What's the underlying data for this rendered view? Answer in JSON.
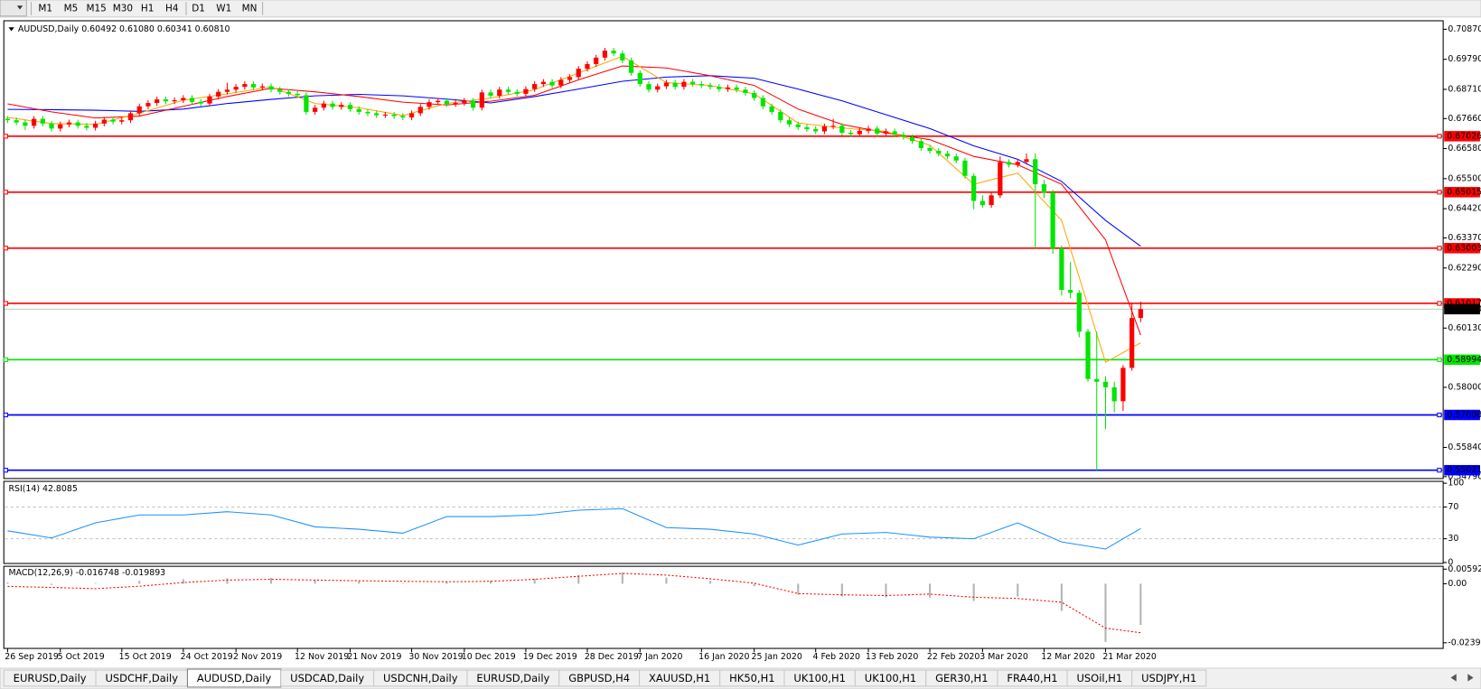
{
  "toolbar": {
    "timeframes": [
      "M1",
      "M5",
      "M15",
      "M30",
      "H1",
      "H4",
      "D1",
      "W1",
      "MN"
    ]
  },
  "chart_data": {
    "type": "candlestick",
    "title": "AUDUSD,Daily  0.60492 0.61080 0.60341 0.60810",
    "categories": [
      "26 Sep 2019",
      null,
      null,
      null,
      null,
      null,
      "5 Oct 2019",
      null,
      null,
      null,
      null,
      null,
      null,
      "15 Oct 2019",
      null,
      null,
      null,
      null,
      null,
      null,
      "24 Oct 2019",
      null,
      null,
      null,
      null,
      null,
      "2 Nov 2019",
      null,
      null,
      null,
      null,
      null,
      null,
      "12 Nov 2019",
      null,
      null,
      null,
      null,
      null,
      "21 Nov 2019",
      null,
      null,
      null,
      null,
      null,
      null,
      "30 Nov 2019",
      null,
      null,
      null,
      null,
      null,
      "10 Dec 2019",
      null,
      null,
      null,
      null,
      null,
      null,
      "19 Dec 2019",
      null,
      null,
      null,
      null,
      null,
      null,
      "28 Dec 2019",
      null,
      null,
      null,
      null,
      null,
      "7 Jan 2020",
      null,
      null,
      null,
      null,
      null,
      null,
      "16 Jan 2020",
      null,
      null,
      null,
      null,
      null,
      "25 Jan 2020",
      null,
      null,
      null,
      null,
      null,
      null,
      "4 Feb 2020",
      null,
      null,
      null,
      null,
      null,
      "13 Feb 2020",
      null,
      null,
      null,
      null,
      null,
      null,
      "22 Feb 2020",
      null,
      null,
      null,
      null,
      null,
      "3 Mar 2020",
      null,
      null,
      null,
      null,
      null,
      null,
      "12 Mar 2020",
      null,
      null,
      null,
      null,
      null,
      null,
      "21 Mar 2020",
      null,
      null,
      null,
      null
    ],
    "open": [
      0.6765,
      0.676,
      0.6752,
      0.674,
      0.6765,
      0.6748,
      0.673,
      0.6745,
      0.6752,
      0.674,
      0.6733,
      0.6748,
      0.6762,
      0.6755,
      0.676,
      0.6785,
      0.681,
      0.6822,
      0.6835,
      0.6828,
      0.6832,
      0.684,
      0.6826,
      0.682,
      0.6845,
      0.6862,
      0.687,
      0.688,
      0.689,
      0.6878,
      0.6882,
      0.687,
      0.6862,
      0.6855,
      0.685,
      0.679,
      0.6805,
      0.682,
      0.6808,
      0.6815,
      0.68,
      0.679,
      0.6785,
      0.6778,
      0.678,
      0.6775,
      0.677,
      0.6785,
      0.6808,
      0.6825,
      0.683,
      0.6818,
      0.6822,
      0.683,
      0.6805,
      0.686,
      0.6848,
      0.687,
      0.6862,
      0.6855,
      0.6872,
      0.689,
      0.6898,
      0.6885,
      0.6905,
      0.6915,
      0.6945,
      0.6962,
      0.6985,
      0.701,
      0.7,
      0.6975,
      0.693,
      0.689,
      0.687,
      0.6882,
      0.6895,
      0.688,
      0.6898,
      0.689,
      0.6885,
      0.688,
      0.6872,
      0.6878,
      0.687,
      0.6858,
      0.684,
      0.681,
      0.679,
      0.676,
      0.6745,
      0.6735,
      0.6728,
      0.672,
      0.6738,
      0.674,
      0.6715,
      0.671,
      0.6722,
      0.673,
      0.6712,
      0.672,
      0.6708,
      0.67,
      0.6685,
      0.666,
      0.665,
      0.664,
      0.663,
      0.6615,
      0.656,
      0.647,
      0.6455,
      0.649,
      0.661,
      0.66,
      0.661,
      0.662,
      0.653,
      0.65,
      0.63,
      0.615,
      0.614,
      0.6,
      0.583,
      0.582,
      0.58,
      0.575,
      0.587,
      0.60492
    ],
    "high": [
      0.6775,
      0.677,
      0.6762,
      0.6775,
      0.6775,
      0.6758,
      0.6755,
      0.6762,
      0.6762,
      0.675,
      0.6758,
      0.6772,
      0.6772,
      0.677,
      0.6795,
      0.682,
      0.6832,
      0.6845,
      0.6845,
      0.6842,
      0.685,
      0.685,
      0.6836,
      0.6855,
      0.6872,
      0.6895,
      0.689,
      0.69,
      0.69,
      0.6892,
      0.6892,
      0.688,
      0.6872,
      0.6865,
      0.686,
      0.6815,
      0.683,
      0.683,
      0.6825,
      0.6825,
      0.681,
      0.68,
      0.6795,
      0.679,
      0.679,
      0.6785,
      0.6795,
      0.6818,
      0.6835,
      0.684,
      0.684,
      0.6832,
      0.684,
      0.684,
      0.687,
      0.687,
      0.688,
      0.688,
      0.6872,
      0.6882,
      0.69,
      0.6908,
      0.6908,
      0.6915,
      0.6925,
      0.6955,
      0.6972,
      0.6995,
      0.702,
      0.702,
      0.701,
      0.6985,
      0.694,
      0.69,
      0.6892,
      0.6905,
      0.6905,
      0.6908,
      0.6908,
      0.69,
      0.6895,
      0.689,
      0.6888,
      0.6888,
      0.688,
      0.6868,
      0.685,
      0.682,
      0.68,
      0.677,
      0.6755,
      0.6745,
      0.6738,
      0.6748,
      0.6765,
      0.675,
      0.6725,
      0.6732,
      0.674,
      0.674,
      0.673,
      0.673,
      0.6718,
      0.671,
      0.6695,
      0.667,
      0.666,
      0.665,
      0.664,
      0.6625,
      0.657,
      0.649,
      0.65,
      0.663,
      0.662,
      0.662,
      0.664,
      0.664,
      0.6545,
      0.651,
      0.631,
      0.625,
      0.615,
      0.601,
      0.6,
      0.584,
      0.582,
      0.588,
      0.61,
      0.6108
    ],
    "low": [
      0.675,
      0.6742,
      0.6725,
      0.673,
      0.6738,
      0.672,
      0.672,
      0.6735,
      0.673,
      0.6723,
      0.6723,
      0.6738,
      0.6745,
      0.6745,
      0.675,
      0.6775,
      0.68,
      0.6812,
      0.6818,
      0.6818,
      0.6822,
      0.6816,
      0.681,
      0.681,
      0.6835,
      0.6852,
      0.686,
      0.687,
      0.6868,
      0.6868,
      0.686,
      0.6852,
      0.6845,
      0.684,
      0.678,
      0.678,
      0.6795,
      0.6798,
      0.6798,
      0.679,
      0.678,
      0.6775,
      0.6768,
      0.6768,
      0.6765,
      0.676,
      0.676,
      0.6775,
      0.6798,
      0.6815,
      0.6808,
      0.6808,
      0.6812,
      0.6795,
      0.6795,
      0.6838,
      0.6838,
      0.6852,
      0.6845,
      0.6845,
      0.6862,
      0.688,
      0.6875,
      0.6875,
      0.6895,
      0.6905,
      0.6935,
      0.6952,
      0.6975,
      0.699,
      0.6965,
      0.692,
      0.688,
      0.686,
      0.686,
      0.6872,
      0.687,
      0.687,
      0.688,
      0.6875,
      0.687,
      0.6862,
      0.6862,
      0.686,
      0.6848,
      0.683,
      0.68,
      0.678,
      0.675,
      0.6735,
      0.6725,
      0.6718,
      0.671,
      0.671,
      0.6728,
      0.6705,
      0.67,
      0.67,
      0.6712,
      0.6702,
      0.6702,
      0.6698,
      0.669,
      0.6675,
      0.665,
      0.664,
      0.663,
      0.662,
      0.6605,
      0.655,
      0.644,
      0.6445,
      0.6445,
      0.648,
      0.659,
      0.659,
      0.66,
      0.63,
      0.648,
      0.628,
      0.613,
      0.612,
      0.598,
      0.582,
      0.5502,
      0.565,
      0.571,
      0.5715,
      0.586,
      0.6034
    ],
    "close": [
      0.676,
      0.6752,
      0.674,
      0.6765,
      0.6748,
      0.673,
      0.6745,
      0.6752,
      0.674,
      0.6733,
      0.6748,
      0.6762,
      0.6755,
      0.676,
      0.6785,
      0.681,
      0.6822,
      0.6835,
      0.6828,
      0.6832,
      0.684,
      0.6826,
      0.682,
      0.6845,
      0.6862,
      0.687,
      0.688,
      0.689,
      0.6878,
      0.6882,
      0.687,
      0.6862,
      0.6855,
      0.685,
      0.679,
      0.6805,
      0.682,
      0.6808,
      0.6815,
      0.68,
      0.679,
      0.6785,
      0.6778,
      0.678,
      0.6775,
      0.677,
      0.6785,
      0.6808,
      0.6825,
      0.683,
      0.6818,
      0.6822,
      0.683,
      0.6805,
      0.686,
      0.6848,
      0.687,
      0.6862,
      0.6855,
      0.6872,
      0.689,
      0.6898,
      0.6885,
      0.6905,
      0.6915,
      0.6945,
      0.6962,
      0.6985,
      0.701,
      0.7,
      0.6975,
      0.693,
      0.689,
      0.687,
      0.6882,
      0.6895,
      0.688,
      0.6898,
      0.689,
      0.6885,
      0.688,
      0.6872,
      0.6878,
      0.687,
      0.6858,
      0.684,
      0.681,
      0.679,
      0.676,
      0.6745,
      0.6735,
      0.6728,
      0.672,
      0.6738,
      0.674,
      0.6715,
      0.671,
      0.6722,
      0.673,
      0.6712,
      0.672,
      0.6708,
      0.67,
      0.6685,
      0.666,
      0.665,
      0.664,
      0.663,
      0.6615,
      0.656,
      0.647,
      0.6455,
      0.649,
      0.661,
      0.66,
      0.661,
      0.662,
      0.653,
      0.65,
      0.63,
      0.615,
      0.614,
      0.6,
      0.583,
      0.582,
      0.58,
      0.575,
      0.587,
      0.6049,
      0.6081
    ],
    "up_color": "#ff0000",
    "down_color": "#00e600",
    "ylim": [
      0.5479,
      0.7087
    ],
    "yticks": [
      {
        "value": 0.7087,
        "label": "0.70870"
      },
      {
        "value": 0.6979,
        "label": "0.69790"
      },
      {
        "value": 0.6871,
        "label": "0.68710"
      },
      {
        "value": 0.6766,
        "label": "0.67660"
      },
      {
        "value": 0.6658,
        "label": "0.66580"
      },
      {
        "value": 0.655,
        "label": "0.65500"
      },
      {
        "value": 0.6442,
        "label": "0.64420"
      },
      {
        "value": 0.6337,
        "label": "0.63370"
      },
      {
        "value": 0.6229,
        "label": "0.62290"
      },
      {
        "value": 0.6013,
        "label": "0.60130"
      },
      {
        "value": 0.58,
        "label": "0.58000"
      },
      {
        "value": 0.5584,
        "label": "0.55840"
      },
      {
        "value": 0.5479,
        "label": "0.54790"
      }
    ],
    "levels": [
      {
        "value": 0.67026,
        "label": "0.67026",
        "color": "#ff0000"
      },
      {
        "value": 0.65015,
        "label": "0.65015",
        "color": "#ff0000"
      },
      {
        "value": 0.63003,
        "label": "0.63003",
        "color": "#ff0000"
      },
      {
        "value": 0.61017,
        "label": "0.61017",
        "color": "#ff0000"
      },
      {
        "value": 0.58994,
        "label": "0.58994",
        "color": "#00e600"
      },
      {
        "value": 0.57008,
        "label": "0.57008",
        "color": "#0000ff"
      },
      {
        "value": 0.55021,
        "label": "0.55021",
        "color": "#0000ff"
      }
    ],
    "current_price": {
      "value": 0.6081,
      "label": "0.60810"
    },
    "sample_x": [
      0,
      5,
      10,
      15,
      20,
      25,
      30,
      35,
      40,
      45,
      50,
      55,
      60,
      65,
      70,
      75,
      80,
      85,
      90,
      95,
      100,
      105,
      110,
      115,
      120,
      125,
      129
    ],
    "overlays": [
      {
        "color": "#0000ff",
        "values": [
          0.6799,
          0.6798,
          0.6796,
          0.6792,
          0.68,
          0.682,
          0.6835,
          0.6848,
          0.6853,
          0.6848,
          0.6836,
          0.6822,
          0.6845,
          0.6872,
          0.69,
          0.6915,
          0.692,
          0.6911,
          0.6872,
          0.683,
          0.678,
          0.673,
          0.6668,
          0.662,
          0.654,
          0.64,
          0.6307
        ]
      },
      {
        "color": "#ff0000",
        "values": [
          0.6819,
          0.679,
          0.6768,
          0.6775,
          0.681,
          0.6845,
          0.6875,
          0.6862,
          0.6845,
          0.6825,
          0.6815,
          0.6828,
          0.685,
          0.6905,
          0.6955,
          0.6948,
          0.692,
          0.6885,
          0.68,
          0.6745,
          0.6715,
          0.669,
          0.663,
          0.66,
          0.653,
          0.633,
          0.5988
        ]
      },
      {
        "color": "#ffa500",
        "values": [
          0.677,
          0.6748,
          0.6745,
          0.6785,
          0.6832,
          0.6855,
          0.688,
          0.682,
          0.6805,
          0.6777,
          0.682,
          0.684,
          0.687,
          0.693,
          0.699,
          0.6895,
          0.6885,
          0.6855,
          0.675,
          0.6732,
          0.672,
          0.667,
          0.653,
          0.657,
          0.64,
          0.589,
          0.596
        ]
      }
    ],
    "rsi": {
      "title": "RSI(14) 42.8085",
      "ylim": [
        0,
        100
      ],
      "yticks": [
        100,
        70,
        30,
        0
      ],
      "levels": [
        70,
        30
      ],
      "color": "#1e90ff",
      "values": [
        40,
        31,
        50,
        60,
        60,
        64,
        60,
        45,
        42,
        37,
        58,
        58,
        60,
        66,
        68,
        44,
        42,
        36,
        22,
        36,
        38,
        32,
        30,
        50,
        26,
        17,
        42.8085
      ]
    },
    "macd": {
      "title": "MACD(12,26,9) -0.016748 -0.019893",
      "ylim": [
        -0.02394,
        0.005923
      ],
      "yticks": [
        0.005923,
        {
          "value": 0,
          "label": "0.00"
        },
        -0.02394
      ],
      "histogram": {
        "color": "#b4b4b4",
        "values": [
          0.0005,
          -0.0005,
          0.0003,
          0.0012,
          0.0018,
          0.0022,
          0.0024,
          0.0015,
          0.001,
          0.0002,
          0.0008,
          0.0012,
          0.002,
          0.0035,
          0.0045,
          0.0025,
          0.0012,
          -0.001,
          -0.0045,
          -0.0052,
          -0.0055,
          -0.0056,
          -0.007,
          -0.0052,
          -0.011,
          -0.0236,
          -0.016748
        ]
      },
      "signal": {
        "color": "#ff0000",
        "values": [
          -0.0011,
          -0.0015,
          -0.002,
          -0.001,
          0.0005,
          0.0015,
          0.0018,
          0.0015,
          0.0012,
          0.001,
          0.0008,
          0.001,
          0.0018,
          0.003,
          0.0042,
          0.0035,
          0.002,
          0.0002,
          -0.004,
          -0.0045,
          -0.0048,
          -0.0042,
          -0.0055,
          -0.006,
          -0.0075,
          -0.018,
          -0.019893
        ]
      }
    }
  },
  "tabs": {
    "items": [
      "EURUSD,Daily",
      "USDCHF,Daily",
      "AUDUSD,Daily",
      "USDCAD,Daily",
      "USDCNH,Daily",
      "EURUSD,Daily",
      "GBPUSD,H4",
      "XAUUSD,H1",
      "HK50,H1",
      "UK100,H1",
      "UK100,H1",
      "GER30,H1",
      "FRA40,H1",
      "USOil,H1",
      "USDJPY,H1"
    ],
    "active": 2
  }
}
